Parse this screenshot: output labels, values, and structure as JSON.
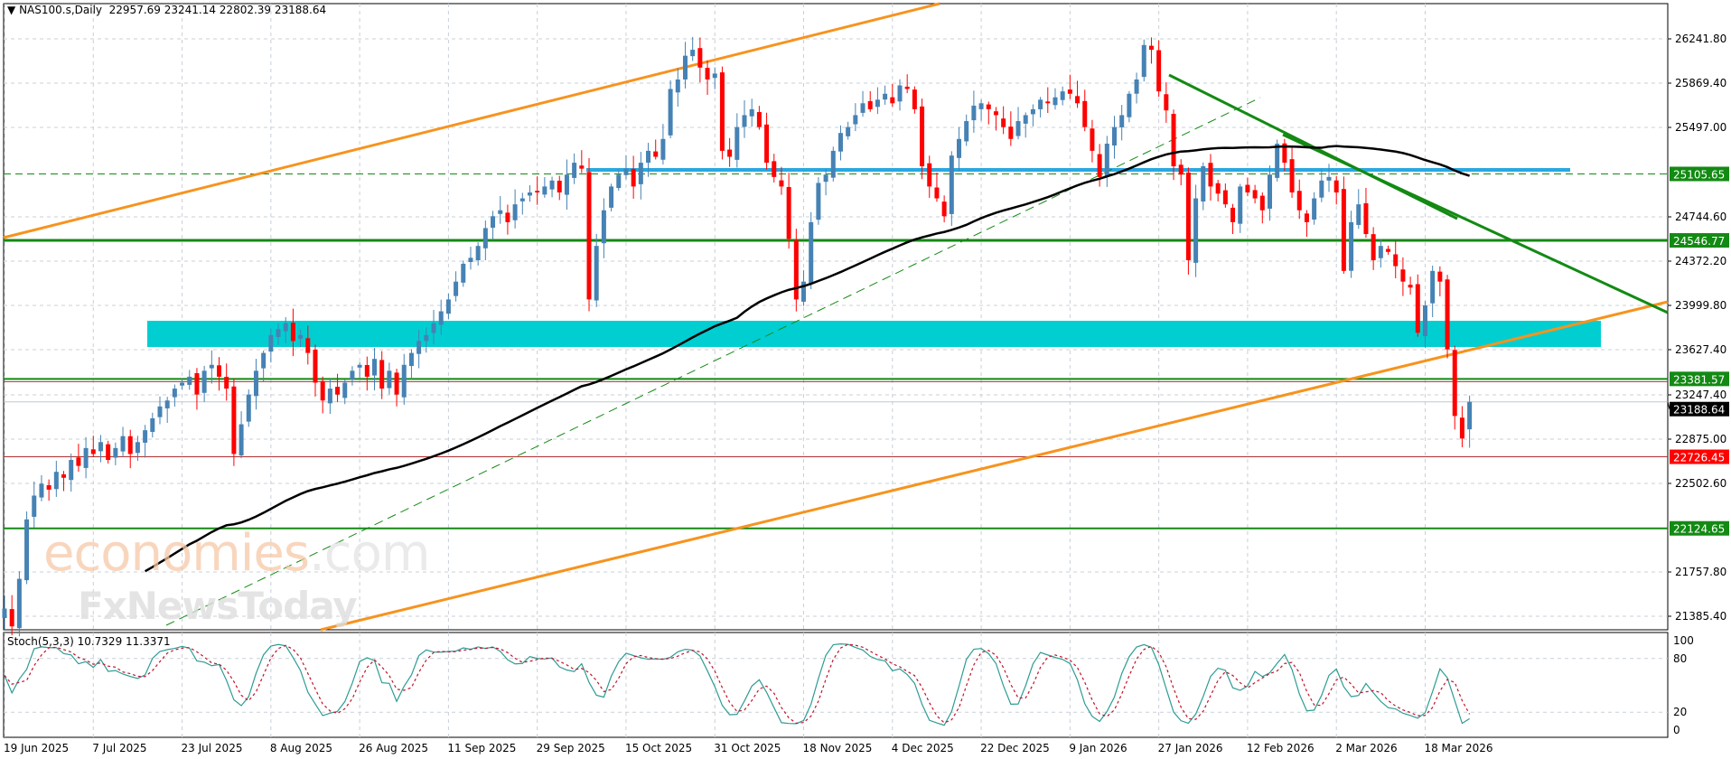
{
  "header": {
    "symbol": "NAS100.s,Daily",
    "ohlc": "22957.69 23241.14 22802.39 23188.64"
  },
  "stoch": {
    "label": "Stoch(5,3,3) 10.7329 11.3371",
    "levels": [
      "100",
      "80",
      "20",
      "0"
    ]
  },
  "watermark": {
    "brand": "economies",
    "suffix": ".com",
    "sub": "FxNewsToday"
  },
  "colors": {
    "bull": "#4682B4",
    "bear": "#FF0000",
    "support_green": "#138a13",
    "zone": "#00CED1",
    "resistance_blue": "#29A8E0",
    "channel": "#F7931E",
    "ma": "#000000",
    "stoch_k": "#2E9C94",
    "stoch_d": "#C0142B"
  },
  "chart_data": {
    "type": "candlestick",
    "symbol": "NAS100.s",
    "timeframe": "Daily",
    "ylim": [
      21290,
      26560
    ],
    "y_ticks": [
      "26241.80",
      "25869.40",
      "25497.00",
      "24744.60",
      "24372.20",
      "23999.80",
      "23627.40",
      "23247.40",
      "22875.00",
      "22502.60",
      "21757.80",
      "21385.40"
    ],
    "x_ticks": [
      "19 Jun 2025",
      "7 Jul 2025",
      "23 Jul 2025",
      "8 Aug 2025",
      "26 Aug 2025",
      "11 Sep 2025",
      "29 Sep 2025",
      "15 Oct 2025",
      "31 Oct 2025",
      "18 Nov 2025",
      "4 Dec 2025",
      "22 Dec 2025",
      "9 Jan 2026",
      "27 Jan 2026",
      "12 Feb 2026",
      "2 Mar 2026",
      "18 Mar 2026"
    ],
    "closes": [
      21450,
      21300,
      21700,
      22200,
      22400,
      22500,
      22450,
      22600,
      22550,
      22700,
      22650,
      22800,
      22750,
      22850,
      22700,
      22800,
      22900,
      22750,
      22850,
      22950,
      23050,
      23150,
      23200,
      23300,
      23350,
      23400,
      23250,
      23450,
      23500,
      23400,
      23300,
      22750,
      23000,
      23250,
      23450,
      23600,
      23750,
      23800,
      23850,
      23700,
      23750,
      23600,
      23350,
      23200,
      23300,
      23250,
      23350,
      23450,
      23500,
      23400,
      23550,
      23300,
      23450,
      23250,
      23500,
      23600,
      23700,
      23750,
      23850,
      23950,
      24050,
      24200,
      24350,
      24400,
      24500,
      24650,
      24750,
      24800,
      24700,
      24850,
      24900,
      24950,
      24950,
      25000,
      25050,
      24950,
      25100,
      25200,
      25150,
      24050,
      24500,
      24800,
      25000,
      25100,
      25150,
      25000,
      25200,
      25300,
      25250,
      25400,
      25820,
      25900,
      26100,
      26150,
      26000,
      25900,
      25950,
      25300,
      25250,
      25500,
      25600,
      25650,
      25500,
      25200,
      25080,
      25000,
      24560,
      24050,
      24200,
      24700,
      25030,
      25100,
      25300,
      25450,
      25500,
      25600,
      25700,
      25650,
      25730,
      25780,
      25700,
      25850,
      25820,
      25650,
      25170,
      25000,
      24900,
      24750,
      25260,
      25400,
      25550,
      25680,
      25700,
      25650,
      25600,
      25500,
      25400,
      25550,
      25600,
      25650,
      25730,
      25700,
      25750,
      25800,
      25780,
      25700,
      25500,
      25300,
      25080,
      25360,
      25500,
      25600,
      25780,
      25900,
      26190,
      26150,
      25800,
      25640,
      25170,
      25100,
      24380,
      24900,
      25170,
      25000,
      24940,
      24850,
      24700,
      25000,
      24950,
      24900,
      24800,
      25100,
      25360,
      25200,
      24950,
      24800,
      24700,
      24900,
      25050,
      25080,
      24950,
      24290,
      24700,
      24850,
      24600,
      24380,
      24500,
      24450,
      24330,
      24200,
      24150,
      23770,
      24000,
      24290,
      24200,
      23630,
      23070,
      22880
    ],
    "last_bar": {
      "open": 22957.69,
      "high": 23241.14,
      "low": 22802.39,
      "close": 23188.64
    },
    "levels": [
      {
        "label": "25105.65",
        "value": 25105.65,
        "style": "dashed",
        "bg": "#138a13"
      },
      {
        "label": "24546.77",
        "value": 24546.77,
        "style": "thick",
        "bg": "#138a13"
      },
      {
        "label": "23381.57",
        "value": 23381.57,
        "style": "solid",
        "bg": "#138a13"
      },
      {
        "label": "23188.64",
        "value": 23188.64,
        "style": "bid",
        "bg": "#000000"
      },
      {
        "label": "22726.45",
        "value": 22726.45,
        "style": "thin-red",
        "bg": "#FF0000"
      },
      {
        "label": "22124.65",
        "value": 22124.65,
        "style": "solid",
        "bg": "#138a13"
      }
    ],
    "zone": {
      "from": 23650,
      "to": 23870
    },
    "resistance_line": 25140,
    "stoch_levels": [
      100,
      80,
      20,
      0
    ]
  }
}
